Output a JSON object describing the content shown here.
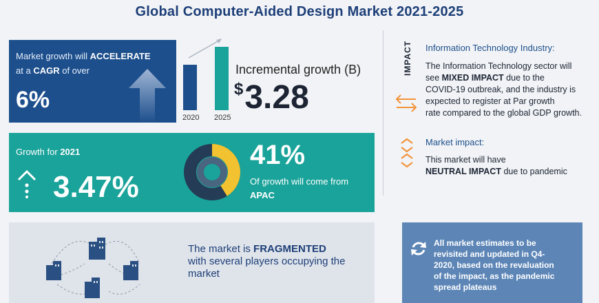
{
  "title": "Global Computer-Aided Design Market 2021-2025",
  "growth_panel": {
    "line1_prefix": "Market growth will",
    "line1_emph": "ACCELERATE",
    "line2_prefix": "at a",
    "line2_emph": "CAGR",
    "line2_suffix": "of over",
    "cagr_value": "6%"
  },
  "bar_chart": {
    "labels": [
      "2020",
      "2025"
    ],
    "colors": [
      "#1d4f8c",
      "#1aa39a"
    ]
  },
  "incremental": {
    "label": "Incremental growth (B)",
    "currency": "$",
    "value": "3.28"
  },
  "growth_2021": {
    "label": "Growth for",
    "year": "2021",
    "value": "3.47%"
  },
  "apac": {
    "percent": "41%",
    "text": "Of growth will come from",
    "region": "APAC",
    "share": 0.41,
    "colors": {
      "highlight": "#f2c230",
      "outer": "#243c55",
      "inner": "#49657f"
    }
  },
  "impact": {
    "vertical_label": "IMPACT",
    "it_title": "Information Technology Industry:",
    "it_line1": "The Information Technology sector will",
    "it_line2_prefix": "see",
    "it_line2_emph": "MIXED IMPACT",
    "it_line2_suffix": "due to the",
    "it_line3": "COVID-19 outbreak, and the industry is",
    "it_line4": "expected to register at Par growth",
    "it_line5": "rate compared to the global GDP growth.",
    "market_title": "Market impact:",
    "market_line1": "This market will have",
    "market_emph": "NEUTRAL IMPACT",
    "market_suffix": "due to pandemic",
    "icon_color": "#f2933a"
  },
  "fragmented": {
    "line1_prefix": "The market is",
    "line1_emph": "FRAGMENTED",
    "line2": "with several players occupying the",
    "line3": "market"
  },
  "note": {
    "line1": "All market estimates to be",
    "line2": "revisited and updated in Q4-",
    "line3": "2020, based on the revaluation",
    "line4": "of the impact, as the pandemic",
    "line5": "spread plateaus"
  },
  "icons": {
    "growth_arrow": "up-arrow-icon",
    "trend_arrow": "trend-arrow-icon",
    "growth_2021": "growth-arrow-icon",
    "it_icon": "exchange-arrows-icon",
    "market_icon": "converge-arrows-icon",
    "buildings": "building-network-icon",
    "refresh": "refresh-icon"
  }
}
